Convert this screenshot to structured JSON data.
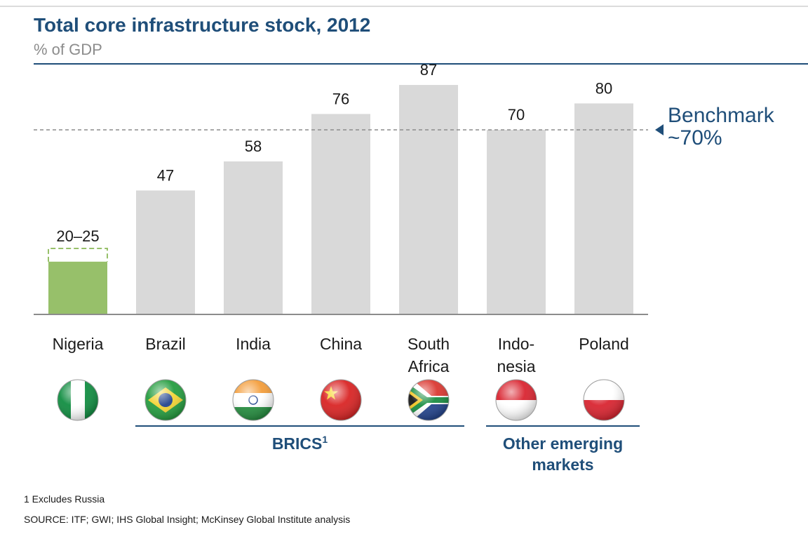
{
  "header": {
    "title": "Total core infrastructure stock, 2012",
    "subtitle": "% of GDP"
  },
  "chart_data": {
    "type": "bar",
    "title": "Total core infrastructure stock, 2012",
    "subtitle": "% of GDP",
    "ylim": [
      0,
      95
    ],
    "categories": [
      {
        "lines": [
          "Nigeria"
        ],
        "flag": "nigeria-flag"
      },
      {
        "lines": [
          "Brazil"
        ],
        "flag": "brazil-flag"
      },
      {
        "lines": [
          "India"
        ],
        "flag": "india-flag"
      },
      {
        "lines": [
          "China"
        ],
        "flag": "china-flag"
      },
      {
        "lines": [
          "South",
          "Africa"
        ],
        "flag": "south-africa-flag"
      },
      {
        "lines": [
          "Indo-",
          "nesia"
        ],
        "flag": "indonesia-flag"
      },
      {
        "lines": [
          "Poland"
        ],
        "flag": "poland-flag"
      }
    ],
    "values": [
      20,
      47,
      58,
      76,
      87,
      70,
      80
    ],
    "range_high": [
      25,
      null,
      null,
      null,
      null,
      null,
      null
    ],
    "labels": [
      "20–25",
      "47",
      "58",
      "76",
      "87",
      "70",
      "80"
    ],
    "bar_colors": [
      "#97c06a",
      "#d9d9d9",
      "#d9d9d9",
      "#d9d9d9",
      "#d9d9d9",
      "#d9d9d9",
      "#d9d9d9"
    ],
    "benchmark": {
      "value": 70,
      "label_lines": [
        "Benchmark",
        "~70%"
      ],
      "color": "#1f4e79"
    },
    "groups": [
      {
        "label": "BRICS",
        "superscript": "1",
        "from": 1,
        "to": 4
      },
      {
        "label_lines": [
          "Other emerging",
          "markets"
        ],
        "from": 5,
        "to": 6
      }
    ],
    "accent_color": "#1f4e79"
  },
  "footnotes": {
    "note": "1 Excludes Russia",
    "source": "SOURCE: ITF; GWI; IHS Global Insight; McKinsey Global Institute analysis"
  }
}
